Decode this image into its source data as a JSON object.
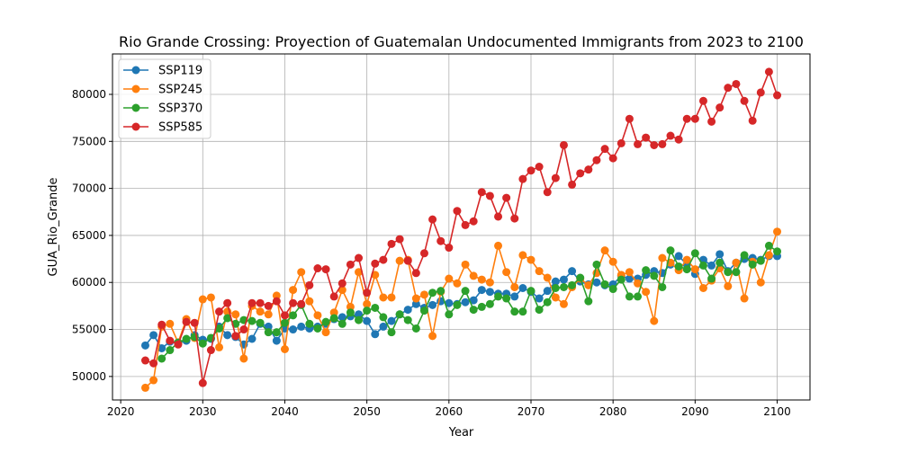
{
  "chart_data": {
    "type": "line",
    "title": "Rio Grande Crossing: Proyection of Guatemalan Undocumented Immigrants from 2023 to 2100",
    "xlabel": "Year",
    "ylabel": "GUA_Rio_Grande",
    "xlim": [
      2019,
      2104
    ],
    "ylim": [
      47500,
      84300
    ],
    "x_ticks": [
      2020,
      2030,
      2040,
      2050,
      2060,
      2070,
      2080,
      2090,
      2100
    ],
    "y_ticks": [
      50000,
      55000,
      60000,
      65000,
      70000,
      75000,
      80000
    ],
    "grid": true,
    "legend_position": "top-left",
    "x": [
      2023,
      2024,
      2025,
      2026,
      2027,
      2028,
      2029,
      2030,
      2031,
      2032,
      2033,
      2034,
      2035,
      2036,
      2037,
      2038,
      2039,
      2040,
      2041,
      2042,
      2043,
      2044,
      2045,
      2046,
      2047,
      2048,
      2049,
      2050,
      2051,
      2052,
      2053,
      2054,
      2055,
      2056,
      2057,
      2058,
      2059,
      2060,
      2061,
      2062,
      2063,
      2064,
      2065,
      2066,
      2067,
      2068,
      2069,
      2070,
      2071,
      2072,
      2073,
      2074,
      2075,
      2076,
      2077,
      2078,
      2079,
      2080,
      2081,
      2082,
      2083,
      2084,
      2085,
      2086,
      2087,
      2088,
      2089,
      2090,
      2091,
      2092,
      2093,
      2094,
      2095,
      2096,
      2097,
      2098,
      2099,
      2100
    ],
    "series": [
      {
        "name": "SSP119",
        "color": "#1f77b4",
        "values": [
          53300,
          54400,
          53000,
          53700,
          53600,
          53800,
          54400,
          53900,
          54000,
          55300,
          54400,
          54200,
          53400,
          54000,
          55600,
          55300,
          53800,
          55100,
          55000,
          55300,
          55100,
          55300,
          55600,
          56100,
          56300,
          56400,
          56600,
          55900,
          54500,
          55300,
          55900,
          56600,
          57100,
          57700,
          57300,
          57600,
          58000,
          57800,
          57700,
          57900,
          58100,
          59200,
          59000,
          58800,
          58800,
          58500,
          59400,
          59000,
          58300,
          59100,
          60100,
          60300,
          61200,
          60100,
          59800,
          60000,
          59700,
          59800,
          60700,
          60400,
          60400,
          60800,
          61200,
          61000,
          61900,
          62800,
          61900,
          60900,
          62400,
          61800,
          63000,
          61200,
          62100,
          62500,
          62600,
          62400,
          62800,
          62800
        ]
      },
      {
        "name": "SSP245",
        "color": "#ff7f0e",
        "values": [
          48800,
          49600,
          55300,
          55600,
          53600,
          56100,
          54100,
          58200,
          58400,
          53100,
          56900,
          56600,
          51900,
          57500,
          56900,
          56600,
          58600,
          52900,
          59200,
          61100,
          58000,
          56500,
          54700,
          56800,
          59200,
          57400,
          61100,
          57700,
          60800,
          58400,
          58400,
          62300,
          62400,
          58300,
          58700,
          54300,
          59000,
          60400,
          59900,
          61900,
          60700,
          60300,
          60000,
          63900,
          61100,
          59500,
          62900,
          62400,
          61200,
          60500,
          58400,
          57700,
          59500,
          60400,
          59700,
          61000,
          63400,
          62200,
          60800,
          61100,
          59900,
          59000,
          55900,
          62600,
          62100,
          61300,
          62400,
          61400,
          59400,
          60200,
          61500,
          59600,
          62100,
          58300,
          62200,
          60000,
          62900,
          65400
        ]
      },
      {
        "name": "SSP370",
        "color": "#2ca02c",
        "values": [
          null,
          null,
          51900,
          52800,
          53600,
          54000,
          54200,
          53500,
          54100,
          55100,
          56200,
          55600,
          56000,
          55900,
          55700,
          54700,
          54700,
          55700,
          56500,
          57600,
          55600,
          55100,
          55800,
          56200,
          55600,
          56800,
          56000,
          57000,
          57300,
          56300,
          54700,
          56600,
          56000,
          55100,
          57000,
          58900,
          59100,
          56600,
          57600,
          59100,
          57100,
          57400,
          57700,
          58500,
          58300,
          56900,
          56900,
          59100,
          57100,
          57900,
          59400,
          59500,
          59700,
          60500,
          58000,
          61900,
          59800,
          59300,
          60300,
          58500,
          58500,
          61300,
          60700,
          59500,
          63400,
          61700,
          61400,
          63100,
          61800,
          60400,
          62100,
          61100,
          61100,
          62900,
          61900,
          62300,
          63900,
          63300
        ]
      },
      {
        "name": "SSP585",
        "color": "#d62728",
        "values": [
          51700,
          51400,
          55500,
          53800,
          53400,
          55800,
          55700,
          49300,
          52800,
          56900,
          57800,
          54300,
          55000,
          57800,
          57800,
          57500,
          58000,
          56500,
          57800,
          57700,
          59700,
          61500,
          61400,
          58500,
          59900,
          61900,
          62600,
          58900,
          62000,
          62400,
          64100,
          64600,
          62300,
          61000,
          63100,
          66700,
          64400,
          63700,
          67600,
          66100,
          66500,
          69600,
          69200,
          67000,
          69000,
          66800,
          71000,
          71900,
          72300,
          69600,
          71100,
          74600,
          70400,
          71600,
          72000,
          73000,
          74200,
          73200,
          74800,
          77400,
          74700,
          75400,
          74600,
          74700,
          75600,
          75200,
          77400,
          77400,
          79300,
          77100,
          78600,
          80700,
          81100,
          79300,
          77200,
          80200,
          82400,
          79900
        ]
      }
    ]
  }
}
